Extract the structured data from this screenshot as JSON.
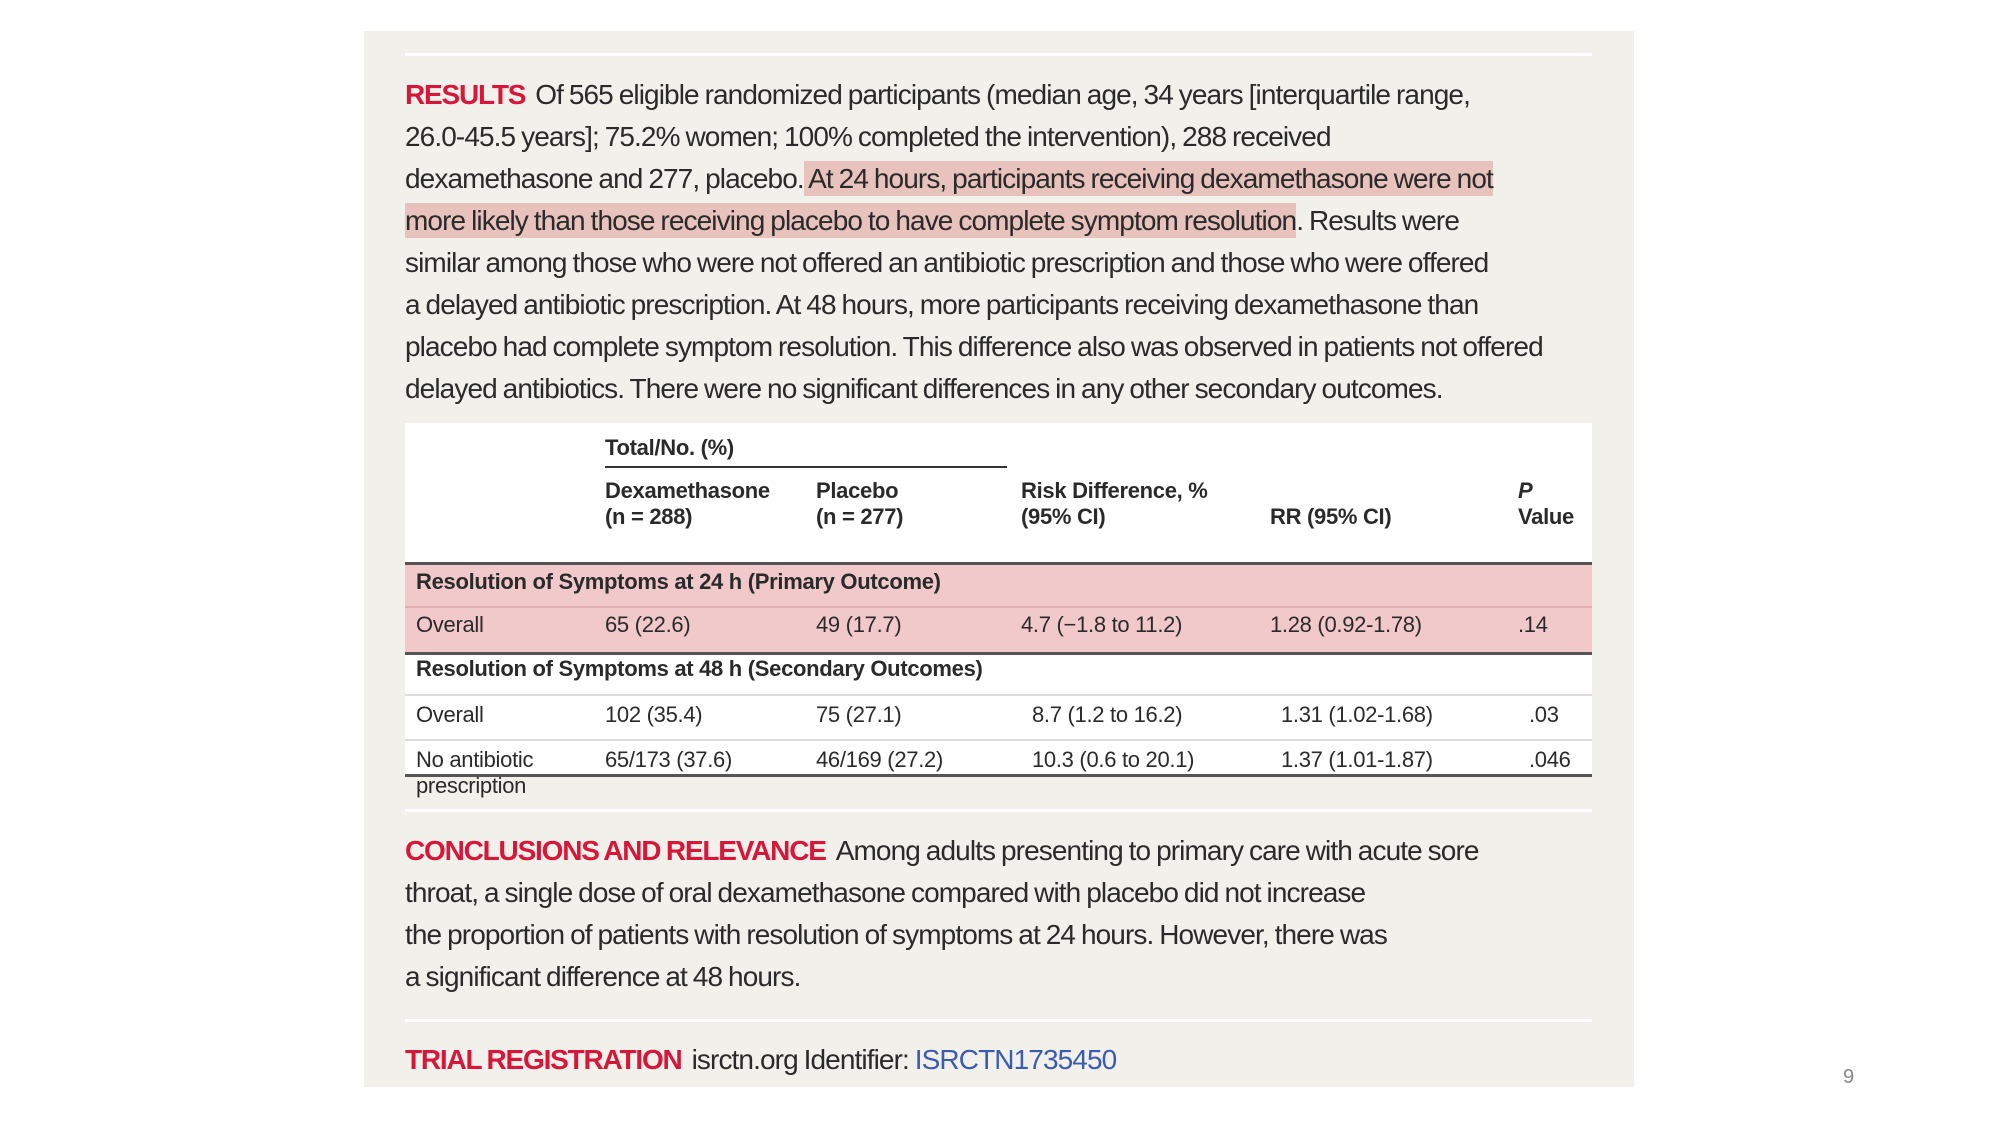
{
  "results": {
    "label": "RESULTS",
    "lines": [
      [
        {
          "t": "Of 565 eligible randomized participants (median age, 34 years [interquartile range,",
          "hl": false
        }
      ],
      [
        {
          "t": "26.0-45.5 years]; 75.2% women; 100% completed the intervention), 288 received",
          "hl": false
        }
      ],
      [
        {
          "t": "dexamethasone and 277, placebo.",
          "hl": false
        },
        {
          "t": " At 24 hours, participants receiving dexamethasone were not ",
          "hl": true
        }
      ],
      [
        {
          "t": "more likely than those receiving placebo to have complete symptom resolution",
          "hl": true
        },
        {
          "t": ". Results were",
          "hl": false
        }
      ],
      [
        {
          "t": "similar among those who were not offered an antibiotic prescription and those who were offered",
          "hl": false
        }
      ],
      [
        {
          "t": "a delayed antibiotic prescription. At 48 hours, more participants receiving dexamethasone than",
          "hl": false
        }
      ],
      [
        {
          "t": "placebo had complete symptom resolution. This difference also was observed in patients not offered",
          "hl": false
        }
      ],
      [
        {
          "t": "delayed antibiotics. There were no significant differences in any other secondary outcomes.",
          "hl": false
        }
      ]
    ]
  },
  "table": {
    "group_header": "Total/No. (%)",
    "columns": [
      {
        "l1": "Dexamethasone",
        "l2": "(n = 288)"
      },
      {
        "l1": "Placebo",
        "l2": "(n = 277)"
      },
      {
        "l1": "Risk Difference, %",
        "l2": "(95% CI)"
      },
      {
        "l1": "",
        "l2": "RR (95% CI)"
      },
      {
        "l1": "P",
        "l2": "Value"
      }
    ],
    "sections": [
      {
        "title": "Resolution of Symptoms at 24 h (Primary Outcome)",
        "highlight": true,
        "rows": [
          {
            "label": "Overall",
            "label2": "",
            "cells": [
              "65 (22.6)",
              "49 (17.7)",
              "4.7 (−1.8 to 11.2)",
              "1.28 (0.92-1.78)",
              ".14"
            ]
          }
        ]
      },
      {
        "title": "Resolution of Symptoms at 48 h (Secondary Outcomes)",
        "highlight": false,
        "rows": [
          {
            "label": "Overall",
            "label2": "",
            "cells": [
              "102 (35.4)",
              "75 (27.1)",
              "8.7 (1.2 to 16.2)",
              "1.31 (1.02-1.68)",
              ".03"
            ]
          },
          {
            "label": "No antibiotic",
            "label2": "prescription",
            "cells": [
              "65/173 (37.6)",
              "46/169 (27.2)",
              "10.3 (0.6 to 20.1)",
              "1.37 (1.01-1.87)",
              ".046"
            ]
          }
        ]
      }
    ]
  },
  "conclusions": {
    "label": "CONCLUSIONS AND RELEVANCE",
    "lines": [
      "Among adults presenting to primary care with acute sore",
      "throat, a single dose of oral dexamethasone compared with placebo did not increase",
      "the proportion of patients with resolution of symptoms at 24 hours. However, there was",
      "a significant difference at 48 hours."
    ]
  },
  "trial": {
    "label": "TRIAL REGISTRATION",
    "text": "isrctn.org Identifier: ",
    "link": "ISRCTN1735450"
  },
  "page_number": "9",
  "colors": {
    "accent_red": "#d6173a",
    "link_blue": "#3a5bb0",
    "highlight": "#e8c2bd",
    "panel_bg": "#f1f0ea"
  }
}
